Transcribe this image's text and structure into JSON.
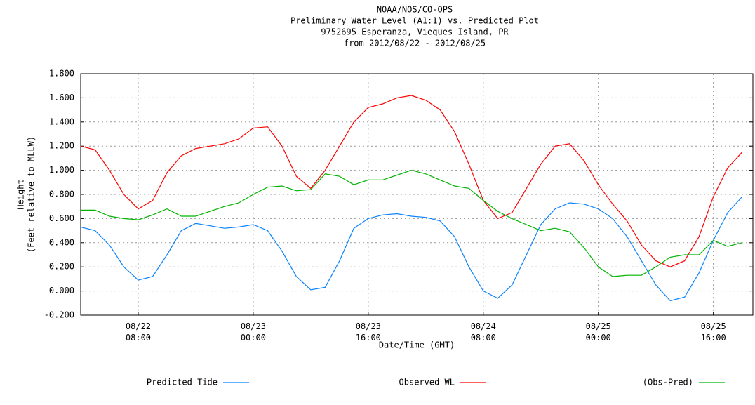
{
  "chart_data": {
    "type": "line",
    "title": [
      "NOAA/NOS/CO-OPS",
      "Preliminary  Water Level (A1:1) vs. Predicted Plot",
      "9752695 Esperanza, Vieques Island, PR",
      "from 2012/08/22 - 2012/08/25"
    ],
    "x_label": "Date/Time (GMT)",
    "y_label": [
      "Height",
      "(Feet relative to MLLW)"
    ],
    "x": [
      "08/22 00:00",
      "08/22 02:00",
      "08/22 04:00",
      "08/22 06:00",
      "08/22 08:00",
      "08/22 10:00",
      "08/22 12:00",
      "08/22 14:00",
      "08/22 16:00",
      "08/22 18:00",
      "08/22 20:00",
      "08/22 22:00",
      "08/23 00:00",
      "08/23 02:00",
      "08/23 04:00",
      "08/23 06:00",
      "08/23 08:00",
      "08/23 10:00",
      "08/23 12:00",
      "08/23 14:00",
      "08/23 16:00",
      "08/23 18:00",
      "08/23 20:00",
      "08/23 22:00",
      "08/24 00:00",
      "08/24 02:00",
      "08/24 04:00",
      "08/24 06:00",
      "08/24 08:00",
      "08/24 10:00",
      "08/24 12:00",
      "08/24 14:00",
      "08/24 16:00",
      "08/24 18:00",
      "08/24 20:00",
      "08/24 22:00",
      "08/25 00:00",
      "08/25 02:00",
      "08/25 04:00",
      "08/25 06:00",
      "08/25 08:00",
      "08/25 10:00",
      "08/25 12:00",
      "08/25 14:00",
      "08/25 16:00",
      "08/25 18:00",
      "08/25 20:00"
    ],
    "series": [
      {
        "name": "Predicted Tide",
        "color": "#0a82ff",
        "values": [
          0.53,
          0.5,
          0.38,
          0.2,
          0.09,
          0.12,
          0.3,
          0.5,
          0.56,
          0.54,
          0.52,
          0.53,
          0.55,
          0.5,
          0.33,
          0.12,
          0.01,
          0.03,
          0.25,
          0.52,
          0.6,
          0.63,
          0.64,
          0.62,
          0.61,
          0.58,
          0.45,
          0.2,
          0.0,
          -0.06,
          0.05,
          0.3,
          0.55,
          0.68,
          0.73,
          0.72,
          0.68,
          0.6,
          0.45,
          0.25,
          0.05,
          -0.08,
          -0.05,
          0.15,
          0.42,
          0.65,
          0.78
        ]
      },
      {
        "name": "Observed WL",
        "color": "#ff0000",
        "values": [
          1.2,
          1.17,
          1.0,
          0.8,
          0.68,
          0.75,
          0.98,
          1.12,
          1.18,
          1.2,
          1.22,
          1.26,
          1.35,
          1.36,
          1.2,
          0.95,
          0.85,
          1.0,
          1.2,
          1.4,
          1.52,
          1.55,
          1.6,
          1.62,
          1.58,
          1.5,
          1.32,
          1.05,
          0.75,
          0.6,
          0.65,
          0.85,
          1.05,
          1.2,
          1.22,
          1.08,
          0.88,
          0.72,
          0.58,
          0.38,
          0.25,
          0.2,
          0.25,
          0.45,
          0.78,
          1.02,
          1.15
        ]
      },
      {
        "name": "(Obs-Pred)",
        "color": "#00b400",
        "values": [
          0.67,
          0.67,
          0.62,
          0.6,
          0.59,
          0.63,
          0.68,
          0.62,
          0.62,
          0.66,
          0.7,
          0.73,
          0.8,
          0.86,
          0.87,
          0.83,
          0.84,
          0.97,
          0.95,
          0.88,
          0.92,
          0.92,
          0.96,
          1.0,
          0.97,
          0.92,
          0.87,
          0.85,
          0.75,
          0.66,
          0.6,
          0.55,
          0.5,
          0.52,
          0.49,
          0.36,
          0.2,
          0.12,
          0.13,
          0.13,
          0.2,
          0.28,
          0.3,
          0.3,
          0.42,
          0.37,
          0.4
        ]
      }
    ],
    "xlim": [
      "08/22 00:00",
      "08/25 21:30"
    ],
    "xticks": [
      "08/22 08:00",
      "08/23 00:00",
      "08/23 16:00",
      "08/24 08:00",
      "08/25 00:00",
      "08/25 16:00"
    ],
    "ylim": [
      -0.2,
      1.8
    ],
    "yticks": [
      {
        "value": -0.2,
        "label": "-0.200"
      },
      {
        "value": 0,
        "label": "0.000"
      },
      {
        "value": 0.2,
        "label": "0.200"
      },
      {
        "value": 0.4,
        "label": "0.400"
      },
      {
        "value": 0.6,
        "label": "0.600"
      },
      {
        "value": 0.8,
        "label": "0.800"
      },
      {
        "value": 1.0,
        "label": "1.000"
      },
      {
        "value": 1.2,
        "label": "1.200"
      },
      {
        "value": 1.4,
        "label": "1.400"
      },
      {
        "value": 1.6,
        "label": "1.600"
      },
      {
        "value": 1.8,
        "label": "1.800"
      }
    ],
    "grid": true,
    "legend": "bottom"
  }
}
